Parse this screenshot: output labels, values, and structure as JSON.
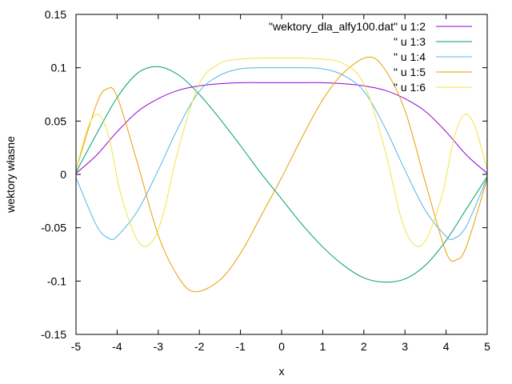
{
  "chart_data": {
    "type": "line",
    "title": "",
    "xlabel": "x",
    "ylabel": "wektory własne",
    "xlim": [
      -5,
      5
    ],
    "ylim": [
      -0.15,
      0.15
    ],
    "xticks": [
      -5,
      -4,
      -3,
      -2,
      -1,
      0,
      1,
      2,
      3,
      4,
      5
    ],
    "yticks": [
      -0.15,
      -0.1,
      -0.05,
      0,
      0.05,
      0.1,
      0.15
    ],
    "xtick_labels": [
      "-5",
      "-4",
      "-3",
      "-2",
      "-1",
      "0",
      "1",
      "2",
      "3",
      "4",
      "5"
    ],
    "ytick_labels": [
      "-0.15",
      "-0.1",
      "-0.05",
      "0",
      "0.05",
      "0.1",
      "0.15"
    ],
    "grid": false,
    "legend_position": "top-right",
    "series": [
      {
        "name": "\"wektory_dla_alfy100.dat\" u 1:2",
        "color": "#9400d3",
        "x": [
          -5,
          -4.5,
          -4,
          -3.5,
          -3,
          -2.5,
          -2,
          -1.5,
          -1,
          -0.5,
          0,
          0.5,
          1,
          1.5,
          2,
          2.5,
          3,
          3.5,
          4,
          4.5,
          5
        ],
        "y": [
          0.001,
          0.018,
          0.04,
          0.059,
          0.071,
          0.079,
          0.083,
          0.085,
          0.086,
          0.086,
          0.086,
          0.086,
          0.086,
          0.085,
          0.083,
          0.079,
          0.071,
          0.059,
          0.04,
          0.018,
          0.001
        ]
      },
      {
        "name": "\" u 1:3",
        "color": "#009e73",
        "x": [
          -5,
          -4.5,
          -4,
          -3.5,
          -3,
          -2.5,
          -2,
          -1.5,
          -1,
          -0.5,
          0,
          0.5,
          1,
          1.5,
          2,
          2.5,
          3,
          3.5,
          4,
          4.5,
          5
        ],
        "y": [
          0.002,
          0.038,
          0.072,
          0.095,
          0.101,
          0.093,
          0.075,
          0.052,
          0.027,
          0.001,
          -0.023,
          -0.047,
          -0.068,
          -0.085,
          -0.097,
          -0.101,
          -0.098,
          -0.085,
          -0.062,
          -0.032,
          -0.002
        ]
      },
      {
        "name": "\" u 1:4",
        "color": "#56b4e9",
        "x": [
          -5,
          -4.5,
          -4.2,
          -4,
          -3.5,
          -3,
          -2.5,
          -2,
          -1.5,
          -1,
          -0.5,
          0,
          0.5,
          1,
          1.5,
          2,
          2.5,
          3,
          3.5,
          4,
          4.2,
          4.5,
          5
        ],
        "y": [
          -0.003,
          -0.048,
          -0.06,
          -0.058,
          -0.034,
          0.004,
          0.045,
          0.078,
          0.093,
          0.099,
          0.1,
          0.1,
          0.1,
          0.099,
          0.093,
          0.078,
          0.045,
          0.004,
          -0.034,
          -0.058,
          -0.06,
          -0.048,
          -0.003
        ]
      },
      {
        "name": "\" u 1:5",
        "color": "#e69f00",
        "x": [
          -5,
          -4.5,
          -4.25,
          -4,
          -3.5,
          -3,
          -2.5,
          -2.1,
          -1.5,
          -1,
          -0.5,
          0,
          0.5,
          1,
          1.5,
          2.1,
          2.5,
          3,
          3.5,
          4,
          4.25,
          4.5,
          5
        ],
        "y": [
          0.004,
          0.066,
          0.08,
          0.073,
          0.01,
          -0.057,
          -0.097,
          -0.11,
          -0.099,
          -0.074,
          -0.039,
          -0.003,
          0.035,
          0.07,
          0.095,
          0.11,
          0.099,
          0.06,
          -0.008,
          -0.073,
          -0.08,
          -0.067,
          -0.004
        ]
      },
      {
        "name": "\" u 1:6",
        "color": "#f0e442",
        "x": [
          -5,
          -4.7,
          -4.45,
          -4.2,
          -3.9,
          -3.5,
          -3.2,
          -2.9,
          -2.5,
          -2,
          -1.5,
          -1,
          -0.5,
          0,
          0.5,
          1,
          1.5,
          2,
          2.5,
          2.9,
          3.2,
          3.5,
          3.9,
          4.2,
          4.45,
          4.7,
          5
        ],
        "y": [
          0.004,
          0.045,
          0.056,
          0.035,
          -0.02,
          -0.062,
          -0.065,
          -0.04,
          0.025,
          0.085,
          0.104,
          0.108,
          0.109,
          0.109,
          0.109,
          0.108,
          0.104,
          0.085,
          0.025,
          -0.04,
          -0.065,
          -0.062,
          -0.02,
          0.035,
          0.056,
          0.045,
          0.004
        ]
      }
    ]
  }
}
